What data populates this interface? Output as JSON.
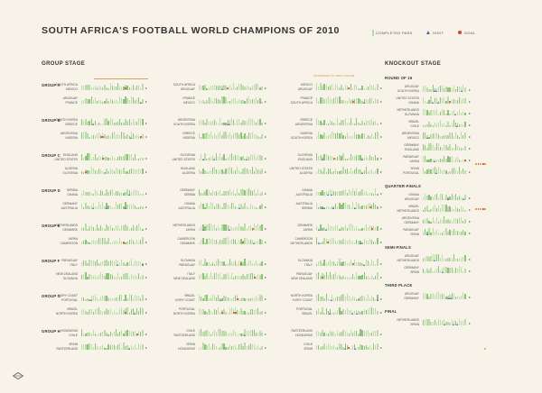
{
  "title": "SOUTH AFRICA'S FOOTBALL WORLD CHAMPIONS OF 2010",
  "legend": {
    "completed_pass": "COMPLETED PASS",
    "shot": "SHOT",
    "goal": "GOAL",
    "colors": {
      "pass": "#b9d9a8",
      "pass_dense": "#8fc27a",
      "shot": "#4a6fb5",
      "goal": "#d2462c",
      "annotation": "#e08a2a"
    }
  },
  "group_stage_title": "GROUP STAGE",
  "knockout_title": "KNOCKOUT STAGE",
  "chart_data": {
    "type": "table",
    "groups": [
      {
        "name": "GROUP A",
        "matches": [
          [
            "SOUTH AFRICA",
            "MEXICO"
          ],
          [
            "SOUTH AFRICA",
            "URUGUAY"
          ],
          [
            "MEXICO",
            "URUGUAY"
          ],
          [
            "URUGUAY",
            "FRANCE"
          ],
          [
            "FRANCE",
            "MEXICO"
          ],
          [
            "FRANCE",
            "SOUTH AFRICA"
          ]
        ]
      },
      {
        "name": "GROUP B",
        "matches": [
          [
            "SOUTH KOREA",
            "GREECE"
          ],
          [
            "ARGENTINA",
            "SOUTH KOREA"
          ],
          [
            "GREECE",
            "ARGENTINA"
          ],
          [
            "ARGENTINA",
            "NIGERIA"
          ],
          [
            "GREECE",
            "NIGERIA"
          ],
          [
            "NIGERIA",
            "SOUTH KOREA"
          ]
        ]
      },
      {
        "name": "GROUP C",
        "matches": [
          [
            "ENGLAND",
            "UNITED STATES"
          ],
          [
            "SLOVENIA",
            "UNITED STATES"
          ],
          [
            "SLOVENIA",
            "ENGLAND"
          ],
          [
            "ALGERIA",
            "SLOVENIA"
          ],
          [
            "ENGLAND",
            "ALGERIA"
          ],
          [
            "UNITED STATES",
            "ALGERIA"
          ]
        ]
      },
      {
        "name": "GROUP D",
        "matches": [
          [
            "SERBIA",
            "GHANA"
          ],
          [
            "GERMANY",
            "SERBIA"
          ],
          [
            "GHANA",
            "AUSTRALIA"
          ],
          [
            "GERMANY",
            "AUSTRALIA"
          ],
          [
            "GHANA",
            "AUSTRALIA"
          ],
          [
            "AUSTRALIA",
            "SERBIA"
          ]
        ]
      },
      {
        "name": "GROUP E",
        "matches": [
          [
            "NETHERLANDS",
            "DENMARK"
          ],
          [
            "NETHERLANDS",
            "JAPAN"
          ],
          [
            "DENMARK",
            "JAPAN"
          ],
          [
            "JAPAN",
            "CAMEROON"
          ],
          [
            "CAMEROON",
            "DENMARK"
          ],
          [
            "CAMEROON",
            "NETHERLANDS"
          ]
        ]
      },
      {
        "name": "GROUP F",
        "matches": [
          [
            "PARAGUAY",
            "ITALY"
          ],
          [
            "SLOVAKIA",
            "PARAGUAY"
          ],
          [
            "SLOVAKIA",
            "ITALY"
          ],
          [
            "NEW ZEALAND",
            "SLOVAKIA"
          ],
          [
            "ITALY",
            "NEW ZEALAND"
          ],
          [
            "PARAGUAY",
            "NEW ZEALAND"
          ]
        ]
      },
      {
        "name": "GROUP G",
        "matches": [
          [
            "IVORY COAST",
            "PORTUGAL"
          ],
          [
            "BRAZIL",
            "IVORY COAST"
          ],
          [
            "NORTH KOREA",
            "IVORY COAST"
          ],
          [
            "BRAZIL",
            "NORTH KOREA"
          ],
          [
            "PORTUGAL",
            "NORTH KOREA"
          ],
          [
            "PORTUGAL",
            "BRAZIL"
          ]
        ]
      },
      {
        "name": "GROUP H",
        "matches": [
          [
            "HONDURAS",
            "CHILE"
          ],
          [
            "CHILE",
            "SWITZERLAND"
          ],
          [
            "SWITZERLAND",
            "HONDURAS"
          ],
          [
            "SPAIN",
            "SWITZERLAND"
          ],
          [
            "SPAIN",
            "HONDURAS"
          ],
          [
            "CHILE",
            "SPAIN"
          ]
        ]
      }
    ],
    "knockout": [
      {
        "name": "ROUND OF 16",
        "matches": [
          [
            "URUGUAY",
            "SOUTH KOREA"
          ],
          [
            "UNITED STATES",
            "GHANA"
          ],
          [
            "NETHERLANDS",
            "SLOVAKIA"
          ],
          [
            "BRAZIL",
            "CHILE"
          ],
          [
            "ARGENTINA",
            "MEXICO"
          ],
          [
            "GERMANY",
            "ENGLAND"
          ],
          [
            "PARAGUAY",
            "JAPAN"
          ],
          [
            "SPAIN",
            "PORTUGAL"
          ]
        ]
      },
      {
        "name": "QUARTER-FINALS",
        "matches": [
          [
            "GHANA",
            "URUGUAY"
          ],
          [
            "BRAZIL",
            "NETHERLANDS"
          ],
          [
            "ARGENTINA",
            "GERMANY"
          ],
          [
            "PARAGUAY",
            "SPAIN"
          ]
        ]
      },
      {
        "name": "SEMI-FINALS",
        "matches": [
          [
            "URUGUAY",
            "NETHERLANDS"
          ],
          [
            "GERMANY",
            "SPAIN"
          ]
        ]
      },
      {
        "name": "THIRD PLACE",
        "matches": [
          [
            "URUGUAY",
            "GERMANY"
          ]
        ]
      },
      {
        "name": "FINAL",
        "matches": [
          [
            "NETHERLANDS",
            "SPAIN"
          ]
        ]
      }
    ]
  }
}
